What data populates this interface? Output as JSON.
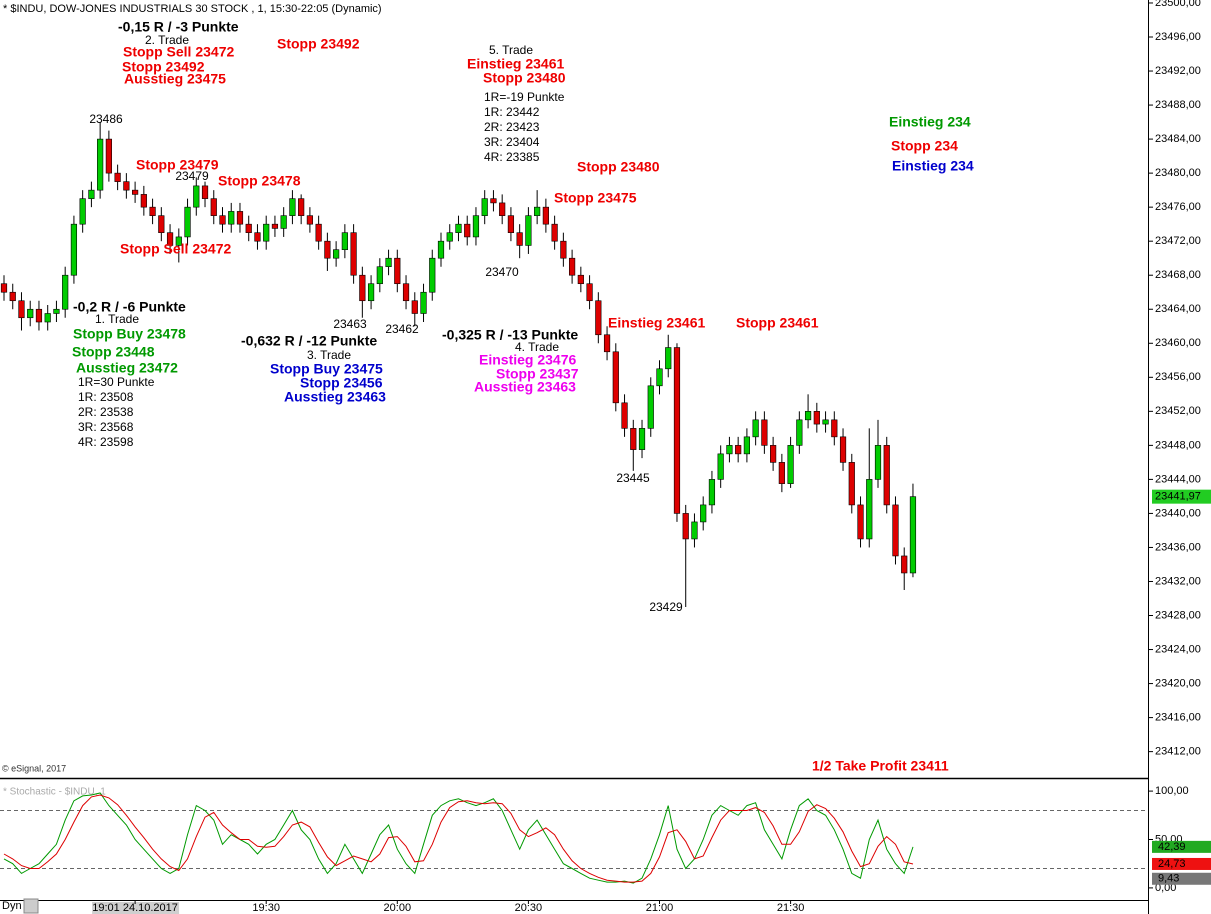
{
  "header": "* $INDU, DOW-JONES INDUSTRIALS 30 STOCK , 1, 15:30-22:05 (Dynamic)",
  "copyright": "© eSignal, 2017",
  "footer_mode": "Dyn",
  "chart_data": [
    {
      "type": "candlestick",
      "categories": [
        null,
        null,
        null,
        null,
        null,
        null,
        null,
        null,
        null,
        null,
        null,
        null,
        null,
        null,
        null,
        "19:01 24.10.2017",
        null,
        null,
        null,
        null,
        null,
        null,
        null,
        null,
        null,
        null,
        null,
        null,
        null,
        null,
        "19:30",
        null,
        null,
        null,
        null,
        null,
        null,
        null,
        null,
        null,
        null,
        null,
        null,
        null,
        null,
        "20:00",
        null,
        null,
        null,
        null,
        null,
        null,
        null,
        null,
        null,
        null,
        null,
        null,
        null,
        null,
        "20:30",
        null,
        null,
        null,
        null,
        null,
        null,
        null,
        null,
        null,
        null,
        null,
        null,
        null,
        null,
        "21:00",
        null,
        null,
        null,
        null,
        null,
        null,
        null,
        null,
        null,
        null,
        null,
        null,
        null,
        null,
        "21:30",
        null,
        null,
        null,
        null,
        null,
        null,
        null,
        null,
        null,
        null,
        null,
        null,
        null,
        null
      ],
      "open": [
        23467,
        23466,
        23465,
        23463,
        23464,
        23462.5,
        23463.5,
        23464,
        23468,
        23474,
        23477,
        23478,
        23484,
        23480,
        23479,
        23478,
        23477.5,
        23476,
        23475,
        23473,
        23471.5,
        23472.5,
        23476,
        23478.5,
        23477,
        23475,
        23474,
        23475.5,
        23474,
        23473,
        23472,
        23474,
        23473.5,
        23475,
        23477,
        23475,
        23474,
        23472,
        23470,
        23471,
        23473,
        23468,
        23465,
        23467,
        23469,
        23470,
        23467,
        23465,
        23463.5,
        23466,
        23470,
        23472,
        23473,
        23474,
        23472.5,
        23475,
        23477,
        23476.5,
        23475,
        23473,
        23471.5,
        23475,
        23476,
        23474,
        23472,
        23470,
        23468,
        23467,
        23465,
        23461,
        23459,
        23453,
        23450,
        23447.5,
        23450,
        23455,
        23457,
        23459.5,
        23440,
        23437,
        23439,
        23441,
        23444,
        23447,
        23448,
        23447,
        23449,
        23451,
        23448,
        23446,
        23443.5,
        23448,
        23451,
        23452,
        23450.5,
        23451,
        23449,
        23446,
        23441,
        23437,
        23444,
        23448,
        23441,
        23435,
        23433
      ],
      "high": [
        23468,
        23467,
        23466,
        23465,
        23465,
        23464.5,
        23465,
        23469,
        23475,
        23478,
        23479,
        23486,
        23485,
        23481,
        23480,
        23479,
        23478.5,
        23477,
        23476,
        23474,
        23473.5,
        23477,
        23479.5,
        23479,
        23478,
        23476,
        23476.5,
        23476.5,
        23475,
        23474,
        23475,
        23475,
        23476,
        23478,
        23477.5,
        23476,
        23475,
        23473,
        23472,
        23474,
        23474,
        23469,
        23468,
        23470,
        23471,
        23471,
        23468,
        23466,
        23467,
        23471,
        23473,
        23474,
        23475,
        23475,
        23476,
        23478,
        23478,
        23477.5,
        23476,
        23474,
        23476,
        23478,
        23477,
        23475,
        23473,
        23471,
        23469,
        23468,
        23466,
        23462,
        23460,
        23454,
        23451,
        23451,
        23456,
        23458,
        23461,
        23460,
        23441,
        23440,
        23442,
        23445,
        23448,
        23449,
        23449,
        23450,
        23452,
        23452,
        23449,
        23447,
        23449,
        23452,
        23454,
        23453,
        23452,
        23452,
        23450,
        23447,
        23442,
        23450,
        23451,
        23449,
        23442,
        23436,
        23443.5
      ],
      "low": [
        23465,
        23464,
        23461.5,
        23462,
        23461.5,
        23461.5,
        23462.5,
        23463,
        23467,
        23473,
        23476,
        23477,
        23479,
        23478,
        23477,
        23476.5,
        23475,
        23474,
        23472,
        23470.5,
        23469.5,
        23471.5,
        23475,
        23476,
        23474,
        23473,
        23473,
        23473,
        23472,
        23471,
        23471,
        23472.5,
        23472.5,
        23474,
        23474,
        23473,
        23471,
        23468.5,
        23469,
        23470,
        23467,
        23463,
        23464,
        23466,
        23468,
        23466,
        23464,
        23462,
        23462.5,
        23465,
        23469,
        23471,
        23472,
        23471.5,
        23471.5,
        23474,
        23475.5,
        23474,
        23472,
        23470,
        23470.5,
        23474,
        23473,
        23471,
        23469,
        23467,
        23466,
        23464,
        23460,
        23458,
        23452,
        23449,
        23445,
        23446.5,
        23449,
        23454,
        23456,
        23439,
        23429,
        23436,
        23438,
        23440,
        23443,
        23446,
        23446,
        23446,
        23448,
        23447,
        23445,
        23442.5,
        23443,
        23447,
        23450,
        23449.5,
        23449.5,
        23448,
        23445,
        23440,
        23436,
        23436,
        23443,
        23440,
        23434,
        23431,
        23432.5
      ],
      "close": [
        23466,
        23465,
        23463,
        23464,
        23462.5,
        23463.5,
        23464,
        23468,
        23474,
        23477,
        23478,
        23484,
        23480,
        23479,
        23478,
        23477.5,
        23476,
        23475,
        23473,
        23471.5,
        23472.5,
        23476,
        23478.5,
        23477,
        23475,
        23474,
        23475.5,
        23474,
        23473,
        23472,
        23474,
        23473.5,
        23475,
        23477,
        23475,
        23474,
        23472,
        23470,
        23471,
        23473,
        23468,
        23465,
        23467,
        23469,
        23470,
        23467,
        23465,
        23463.5,
        23466,
        23470,
        23472,
        23473,
        23474,
        23472.5,
        23475,
        23477,
        23476.5,
        23475,
        23473,
        23471.5,
        23475,
        23476,
        23474,
        23472,
        23470,
        23468,
        23467,
        23465,
        23461,
        23459,
        23453,
        23450,
        23447.5,
        23450,
        23455,
        23457,
        23459.5,
        23440,
        23437,
        23439,
        23441,
        23444,
        23447,
        23448,
        23447,
        23449,
        23451,
        23448,
        23446,
        23443.5,
        23448,
        23451,
        23452,
        23450.5,
        23451,
        23449,
        23446,
        23441,
        23437,
        23444,
        23448,
        23441,
        23435,
        23433,
        23441.97
      ],
      "up_color": "#00cc00",
      "down_color": "#dd0000",
      "ylim": [
        23408.9,
        23500.35
      ],
      "yticks": [
        {
          "value": 23412,
          "label": "23412,00"
        },
        {
          "value": 23416,
          "label": "23416,00"
        },
        {
          "value": 23420,
          "label": "23420,00"
        },
        {
          "value": 23424,
          "label": "23424,00"
        },
        {
          "value": 23428,
          "label": "23428,00"
        },
        {
          "value": 23432,
          "label": "23432,00"
        },
        {
          "value": 23436,
          "label": "23436,00"
        },
        {
          "value": 23440,
          "label": "23440,00"
        },
        {
          "value": 23444,
          "label": "23444,00"
        },
        {
          "value": 23448,
          "label": "23448,00"
        },
        {
          "value": 23452,
          "label": "23452,00"
        },
        {
          "value": 23456,
          "label": "23456,00"
        },
        {
          "value": 23460,
          "label": "23460,00"
        },
        {
          "value": 23464,
          "label": "23464,00"
        },
        {
          "value": 23468,
          "label": "23468,00"
        },
        {
          "value": 23472,
          "label": "23472,00"
        },
        {
          "value": 23476,
          "label": "23476,00"
        },
        {
          "value": 23480,
          "label": "23480,00"
        },
        {
          "value": 23484,
          "label": "23484,00"
        },
        {
          "value": 23488,
          "label": "23488,00"
        },
        {
          "value": 23492,
          "label": "23492,00"
        },
        {
          "value": 23496,
          "label": "23496,00"
        },
        {
          "value": 23500,
          "label": "23500,00"
        }
      ],
      "last_price": {
        "value": 23441.97,
        "label": "23441,97",
        "color": "#22cc22"
      },
      "price_labels": [
        23486,
        23479,
        23470,
        23463,
        23462,
        23445,
        23429
      ],
      "annotations": [
        {
          "text": "-0,15 R / -3 Punkte",
          "color": "#000000"
        },
        {
          "text": "2. Trade",
          "color": "#000000"
        },
        {
          "text": "Stopp Sell 23472",
          "color": "#ee0000"
        },
        {
          "text": "Stopp 23492",
          "color": "#ee0000"
        },
        {
          "text": "Ausstieg 23475",
          "color": "#ee0000"
        },
        {
          "text": "Stopp 23492",
          "color": "#ee0000"
        },
        {
          "text": "5. Trade",
          "color": "#000000"
        },
        {
          "text": "Einstieg 23461",
          "color": "#ee0000"
        },
        {
          "text": "Stopp 23480",
          "color": "#ee0000"
        },
        {
          "text": "1R=-19 Punkte",
          "color": "#000000"
        },
        {
          "text": "1R: 23442",
          "color": "#000000"
        },
        {
          "text": "2R: 23423",
          "color": "#000000"
        },
        {
          "text": "3R: 23404",
          "color": "#000000"
        },
        {
          "text": "4R: 23385",
          "color": "#000000"
        },
        {
          "text": "Stopp 23479",
          "color": "#ee0000"
        },
        {
          "text": "Stopp 23478",
          "color": "#ee0000"
        },
        {
          "text": "Stopp 23480",
          "color": "#ee0000"
        },
        {
          "text": "Stopp 23475",
          "color": "#ee0000"
        },
        {
          "text": "Stopp Sell 23472",
          "color": "#ee0000"
        },
        {
          "text": "Einstieg 234",
          "color": "#009900"
        },
        {
          "text": "Stopp 234",
          "color": "#ee0000"
        },
        {
          "text": "Einstieg 234",
          "color": "#0000cc"
        },
        {
          "text": "-0,2 R / -6 Punkte",
          "color": "#000000"
        },
        {
          "text": "1. Trade",
          "color": "#000000"
        },
        {
          "text": "Stopp Buy 23478",
          "color": "#009900"
        },
        {
          "text": "Stopp 23448",
          "color": "#009900"
        },
        {
          "text": "Ausstieg 23472",
          "color": "#009900"
        },
        {
          "text": "1R=30 Punkte",
          "color": "#000000"
        },
        {
          "text": "1R: 23508",
          "color": "#000000"
        },
        {
          "text": "2R: 23538",
          "color": "#000000"
        },
        {
          "text": "3R: 23568",
          "color": "#000000"
        },
        {
          "text": "4R: 23598",
          "color": "#000000"
        },
        {
          "text": "-0,632 R / -12 Punkte",
          "color": "#000000"
        },
        {
          "text": "3. Trade",
          "color": "#000000"
        },
        {
          "text": "Stopp Buy 23475",
          "color": "#0000cc"
        },
        {
          "text": "Stopp 23456",
          "color": "#0000cc"
        },
        {
          "text": "Ausstieg 23463",
          "color": "#0000cc"
        },
        {
          "text": "-0,325 R / -13 Punkte",
          "color": "#000000"
        },
        {
          "text": "4. Trade",
          "color": "#000000"
        },
        {
          "text": "Einstieg 23476",
          "color": "#ee00ee"
        },
        {
          "text": "Stopp 23437",
          "color": "#ee00ee"
        },
        {
          "text": "Ausstieg 23463",
          "color": "#ee00ee"
        },
        {
          "text": "Einstieg 23461",
          "color": "#ee0000"
        },
        {
          "text": "Stopp 23461",
          "color": "#ee0000"
        },
        {
          "text": "1/2 Take Profit 23411",
          "color": "#ee0000"
        }
      ]
    },
    {
      "type": "line",
      "title": "* Stochastic - $INDU, 1",
      "series": [
        {
          "color": "#009900",
          "values": [
            30,
            25,
            15,
            20,
            25,
            35,
            45,
            70,
            90,
            95,
            96,
            98,
            85,
            75,
            65,
            50,
            40,
            30,
            20,
            15,
            20,
            55,
            85,
            80,
            70,
            45,
            55,
            50,
            45,
            35,
            45,
            50,
            65,
            80,
            60,
            50,
            30,
            15,
            25,
            45,
            30,
            15,
            35,
            55,
            65,
            40,
            25,
            15,
            45,
            75,
            85,
            90,
            92,
            88,
            85,
            88,
            92,
            80,
            60,
            40,
            60,
            70,
            55,
            40,
            25,
            20,
            15,
            10,
            8,
            6,
            6,
            7,
            5,
            10,
            30,
            55,
            85,
            40,
            20,
            30,
            50,
            75,
            85,
            80,
            75,
            85,
            88,
            60,
            45,
            30,
            60,
            85,
            92,
            80,
            75,
            60,
            40,
            15,
            10,
            50,
            70,
            40,
            25,
            15,
            42.39
          ]
        },
        {
          "color": "#dd0000",
          "values": [
            35,
            30,
            23,
            20,
            20,
            27,
            35,
            50,
            68,
            85,
            94,
            96,
            93,
            86,
            75,
            63,
            52,
            40,
            30,
            22,
            18,
            30,
            53,
            73,
            78,
            65,
            57,
            50,
            50,
            43,
            42,
            43,
            53,
            65,
            68,
            63,
            47,
            32,
            23,
            28,
            33,
            30,
            27,
            35,
            52,
            53,
            43,
            27,
            28,
            45,
            68,
            83,
            89,
            90,
            88,
            87,
            88,
            87,
            77,
            60,
            53,
            57,
            62,
            55,
            40,
            28,
            20,
            15,
            11,
            8,
            7,
            6,
            6,
            7,
            15,
            32,
            57,
            60,
            48,
            30,
            33,
            52,
            70,
            80,
            80,
            80,
            83,
            78,
            64,
            45,
            45,
            58,
            79,
            86,
            82,
            72,
            58,
            38,
            22,
            25,
            43,
            53,
            45,
            27,
            24.73
          ]
        }
      ],
      "ylim": [
        -12.5,
        112.5
      ],
      "yticks": [
        {
          "value": 0,
          "label": "0,00"
        },
        {
          "value": 50,
          "label": "50,00"
        },
        {
          "value": 100,
          "label": "100,00"
        }
      ],
      "levels": [
        20,
        80
      ],
      "markers": [
        {
          "value": 42.39,
          "label": "42,39",
          "color": "#22aa22"
        },
        {
          "value": 24.73,
          "label": "24,73",
          "color": "#ee1111"
        },
        {
          "value": 9.43,
          "label": "9,43",
          "color": "#777777"
        }
      ]
    }
  ]
}
